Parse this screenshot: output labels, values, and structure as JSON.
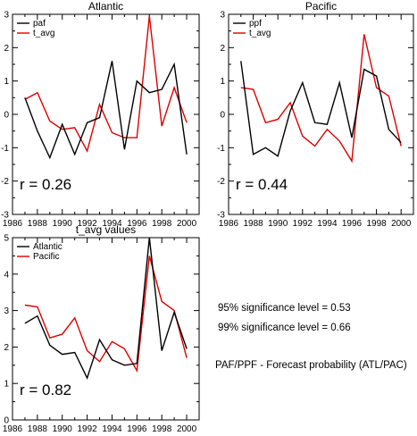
{
  "notes": {
    "sig95": "95% significance level = 0.53",
    "sig99": "99% significance level = 0.66",
    "legend_note": "PAF/PPF - Forecast probability (ATL/PAC)"
  },
  "colors": {
    "black": "#000000",
    "red": "#dd0000"
  },
  "chart_data": [
    {
      "type": "line",
      "title": "Atlantic",
      "xlim": [
        1986,
        2001
      ],
      "ylim": [
        -3,
        3
      ],
      "xticks": [
        1986,
        1988,
        1990,
        1992,
        1994,
        1996,
        1998,
        2000
      ],
      "yticks": [
        -3,
        -2,
        -1,
        0,
        1,
        2,
        3
      ],
      "x": [
        1987,
        1988,
        1989,
        1990,
        1991,
        1992,
        1993,
        1994,
        1995,
        1996,
        1997,
        1998,
        1999,
        2000
      ],
      "series": [
        {
          "name": "paf",
          "color": "#000000",
          "values": [
            0.5,
            -0.5,
            -1.3,
            -0.3,
            -1.2,
            -0.25,
            -0.1,
            1.6,
            -1.05,
            1.0,
            0.65,
            0.75,
            1.5,
            -1.2
          ]
        },
        {
          "name": "t_avg",
          "color": "#dd0000",
          "values": [
            0.45,
            0.65,
            -0.2,
            -0.45,
            -0.4,
            -1.1,
            0.3,
            -0.55,
            -0.7,
            -0.7,
            2.95,
            -0.35,
            0.8,
            -0.25
          ]
        }
      ],
      "annotation": "r = 0.26",
      "legend_position": "top-left"
    },
    {
      "type": "line",
      "title": "Pacific",
      "xlim": [
        1986,
        2001
      ],
      "ylim": [
        -3,
        3
      ],
      "xticks": [
        1986,
        1988,
        1990,
        1992,
        1994,
        1996,
        1998,
        2000
      ],
      "yticks": [
        -3,
        -2,
        -1,
        0,
        1,
        2,
        3
      ],
      "x": [
        1987,
        1988,
        1989,
        1990,
        1991,
        1992,
        1993,
        1994,
        1995,
        1996,
        1997,
        1998,
        1999,
        2000
      ],
      "series": [
        {
          "name": "ppf",
          "color": "#000000",
          "values": [
            1.6,
            -1.2,
            -1.0,
            -1.25,
            0.1,
            0.95,
            -0.25,
            -0.3,
            0.95,
            -0.7,
            1.35,
            1.15,
            -0.45,
            -0.85
          ]
        },
        {
          "name": "t_avg",
          "color": "#dd0000",
          "values": [
            0.8,
            0.75,
            -0.25,
            -0.15,
            0.35,
            -0.65,
            -0.95,
            -0.45,
            -0.8,
            -1.4,
            2.4,
            0.8,
            0.55,
            -0.95
          ]
        }
      ],
      "annotation": "r = 0.44",
      "legend_position": "top-left"
    },
    {
      "type": "line",
      "title": "t_avg values",
      "xlim": [
        1986,
        2001
      ],
      "ylim": [
        0,
        5
      ],
      "xticks": [
        1986,
        1988,
        1990,
        1992,
        1994,
        1996,
        1998,
        2000
      ],
      "yticks": [
        0,
        1,
        2,
        3,
        4,
        5
      ],
      "x": [
        1987,
        1988,
        1989,
        1990,
        1991,
        1992,
        1993,
        1994,
        1995,
        1996,
        1997,
        1998,
        1999,
        2000
      ],
      "series": [
        {
          "name": "Atlantic",
          "color": "#000000",
          "values": [
            2.65,
            2.85,
            2.05,
            1.8,
            1.85,
            1.15,
            2.2,
            1.65,
            1.5,
            1.55,
            5.0,
            1.9,
            2.95,
            1.95
          ]
        },
        {
          "name": "Pacific",
          "color": "#dd0000",
          "values": [
            3.15,
            3.1,
            2.25,
            2.35,
            2.8,
            1.9,
            1.6,
            2.15,
            1.95,
            1.35,
            4.5,
            3.25,
            3.0,
            1.7
          ]
        }
      ],
      "annotation": "r = 0.82",
      "legend_position": "top-left"
    }
  ]
}
